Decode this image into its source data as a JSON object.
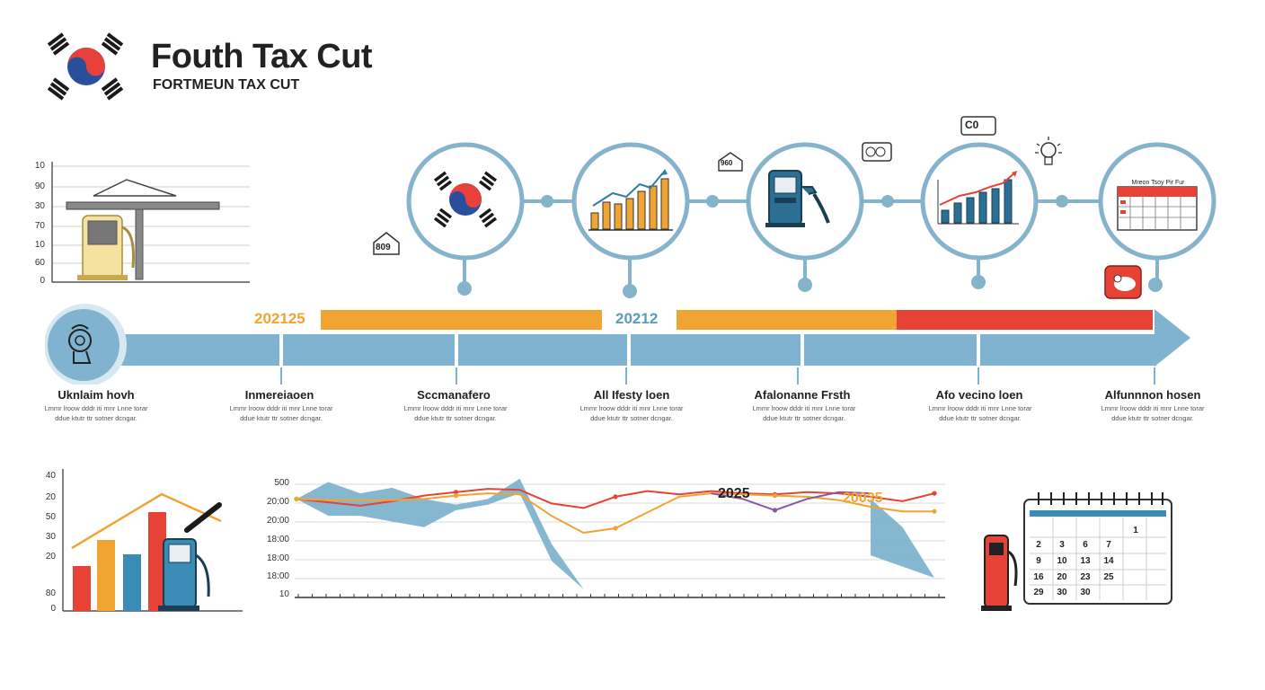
{
  "header": {
    "title": "Fouth  Tax Cut",
    "subtitle": "FORTMEUN TAX CUT"
  },
  "colors": {
    "blue": "#7fb3cf",
    "orange": "#f0a431",
    "red": "#e64236",
    "dark_blue": "#2c6f95"
  },
  "icons": {
    "house_left": "809",
    "house_mid": "960",
    "calc_label": "C0",
    "cal_header_text": "Mreon  Tsoy  Pir  Fur"
  },
  "top_chart": {
    "y_labels": [
      "10",
      "90",
      "30",
      "70",
      "10",
      "60",
      "0"
    ]
  },
  "timeline": {
    "year_left": "202125",
    "year_mid": "20212",
    "steps": [
      {
        "title": "Uknlaim hovh",
        "desc": "Lmmr lroow dddr iti mnr Lnne torar ddue ktutr ttr sotner dcngar."
      },
      {
        "title": "Inmereiaoen",
        "desc": "Lmmr lroow dddr iti mnr Lnne torar ddue ktutr ttr sotner dcngar."
      },
      {
        "title": "Sccmanafero",
        "desc": "Lmmr lroow dddr iti mnr Lnne torar ddue ktutr ttr sotner dcngar."
      },
      {
        "title": "All Ifesty loen",
        "desc": "Lmmr lroow dddr iti mnr Lnne torar ddue ktutr ttr sotner dcngar."
      },
      {
        "title": "Afalonanne Frsth",
        "desc": "Lmmr lroow dddr iti mnr Lnne torar ddue ktutr ttr sotner dcngar."
      },
      {
        "title": "Afo vecino loen",
        "desc": "Lmmr lroow dddr iti mnr Lnne torar ddue ktutr ttr sotner dcngar."
      },
      {
        "title": "Alfunnnon hosen",
        "desc": "Lmmr lroow dddr iti mnr Lnne torar ddue ktutr ttr sotner dcngar."
      }
    ]
  },
  "bar_chart": {
    "y_labels": [
      "40",
      "20",
      "50",
      "30",
      "20",
      "80",
      "0"
    ]
  },
  "chart_data": {
    "type": "line",
    "title": "",
    "xlabel": "",
    "ylabel": "",
    "y_tick_labels": [
      "500",
      "20:00",
      "20:00",
      "18:00",
      "18:00",
      "18:00",
      "10"
    ],
    "annotations": [
      "2025",
      "20035"
    ],
    "x": [
      0,
      1,
      2,
      3,
      4,
      5,
      6,
      7,
      8,
      9,
      10,
      11,
      12,
      13,
      14,
      15,
      16,
      17,
      18,
      19,
      20
    ],
    "series": [
      {
        "name": "red",
        "color": "#e64236",
        "values": [
          20.0,
          19.7,
          19.4,
          19.8,
          20.3,
          20.6,
          20.9,
          20.8,
          19.6,
          19.2,
          20.2,
          20.7,
          20.4,
          20.7,
          20.5,
          20.4,
          20.6,
          20.5,
          20.2,
          19.8,
          20.5
        ]
      },
      {
        "name": "orange",
        "color": "#f0a431",
        "values": [
          20.0,
          19.9,
          19.9,
          19.9,
          20.0,
          20.3,
          20.5,
          20.4,
          18.5,
          17.0,
          17.4,
          18.8,
          20.2,
          20.5,
          20.4,
          20.3,
          20.2,
          19.9,
          19.3,
          18.9,
          18.9
        ]
      },
      {
        "name": "purple",
        "color": "#8a5aa0",
        "values": [
          null,
          null,
          null,
          null,
          null,
          null,
          null,
          null,
          null,
          null,
          null,
          null,
          null,
          20.5,
          20.0,
          19.0,
          20.0,
          20.6,
          20.5,
          null,
          null
        ]
      }
    ],
    "area_series": {
      "name": "blue area",
      "color": "#7fb3cf",
      "upper": [
        20.0,
        21.5,
        20.5,
        21.0,
        20.0,
        19.5,
        20.0,
        21.8,
        16.0,
        12.0,
        null,
        null,
        null,
        null,
        null,
        null,
        null,
        null,
        20.0,
        17.5,
        13.0
      ],
      "lower": [
        20.0,
        18.5,
        18.5,
        18.0,
        17.5,
        19.0,
        19.5,
        20.5,
        14.5,
        12.0,
        null,
        null,
        null,
        null,
        null,
        null,
        null,
        null,
        15.0,
        14.0,
        13.0
      ]
    }
  },
  "calendar": {
    "numbers": [
      "1",
      "2",
      "3",
      "6",
      "7",
      "9",
      "10",
      "13",
      "14",
      "16",
      "20",
      "23",
      "25",
      "29",
      "30",
      "30"
    ]
  }
}
